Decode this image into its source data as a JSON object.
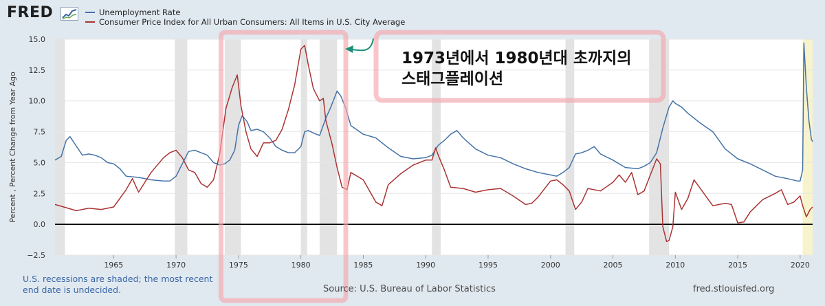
{
  "header": {
    "logo_text": "FRED",
    "logo_icon": "fred-chart-icon"
  },
  "legend": [
    {
      "label": "Unemployment Rate",
      "color": "#4572a7"
    },
    {
      "label": "Consumer Price Index for All Urban Consumers: All Items in U.S. City Average",
      "color": "#aa3333"
    }
  ],
  "annotation": {
    "line1": "1973년에서 1980년대 초까지의",
    "line2": "스태그플레이션"
  },
  "footer": {
    "note_line1": "U.S. recessions are shaded; the most recent",
    "note_line2": "end date is undecided.",
    "source": "Source: U.S. Bureau of Labor Statistics",
    "site": "fred.stlouisfed.org"
  },
  "chart_data": {
    "type": "line",
    "ylabel": "Percent , Percent Change from Year Ago",
    "xlim": [
      1960.3,
      2021.0
    ],
    "ylim": [
      -2.5,
      15.0
    ],
    "yticks": [
      "−2.5",
      "0.0",
      "2.5",
      "5.0",
      "7.5",
      "10.0",
      "12.5",
      "15.0"
    ],
    "ytick_values": [
      -2.5,
      0,
      2.5,
      5,
      7.5,
      10,
      12.5,
      15
    ],
    "xticks": [
      "1965",
      "1970",
      "1975",
      "1980",
      "1985",
      "1990",
      "1995",
      "2000",
      "2005",
      "2010",
      "2015",
      "2020"
    ],
    "xtick_values": [
      1965,
      1970,
      1975,
      1980,
      1985,
      1990,
      1995,
      2000,
      2005,
      2010,
      2015,
      2020
    ],
    "recessions": [
      [
        1960.3,
        1961.1
      ],
      [
        1969.9,
        1970.9
      ],
      [
        1973.9,
        1975.2
      ],
      [
        1980.0,
        1980.5
      ],
      [
        1981.5,
        1982.9
      ],
      [
        1990.5,
        1991.2
      ],
      [
        2001.2,
        2001.9
      ],
      [
        2007.9,
        2009.5
      ]
    ],
    "undecided_recession_start": 2020.2,
    "highlight": {
      "x": [
        1973.6,
        1983.6
      ],
      "label": "stagflation-box"
    },
    "series": [
      {
        "name": "Unemployment Rate",
        "color": "#4572a7",
        "x": [
          1960.3,
          1960.8,
          1961.2,
          1961.5,
          1961.9,
          1962.5,
          1963.0,
          1963.5,
          1964.0,
          1964.5,
          1965.0,
          1965.5,
          1966.0,
          1967.0,
          1968.0,
          1969.0,
          1969.5,
          1970.0,
          1970.5,
          1971.0,
          1971.5,
          1972.0,
          1972.5,
          1973.0,
          1973.5,
          1973.9,
          1974.3,
          1974.7,
          1975.0,
          1975.3,
          1975.7,
          1976.0,
          1976.5,
          1977.0,
          1977.5,
          1978.0,
          1978.5,
          1979.0,
          1979.5,
          1980.0,
          1980.3,
          1980.6,
          1981.0,
          1981.5,
          1982.0,
          1982.4,
          1982.9,
          1983.2,
          1983.6,
          1984.0,
          1985.0,
          1986.0,
          1987.0,
          1988.0,
          1989.0,
          1990.0,
          1990.5,
          1991.0,
          1991.5,
          1992.0,
          1992.5,
          1993.0,
          1994.0,
          1995.0,
          1996.0,
          1997.0,
          1998.0,
          1999.0,
          2000.0,
          2000.5,
          2001.0,
          2001.5,
          2002.0,
          2002.5,
          2003.0,
          2003.5,
          2004.0,
          2005.0,
          2006.0,
          2007.0,
          2007.5,
          2008.0,
          2008.5,
          2009.0,
          2009.5,
          2009.8,
          2010.0,
          2010.5,
          2011.0,
          2012.0,
          2013.0,
          2014.0,
          2015.0,
          2016.0,
          2017.0,
          2018.0,
          2019.0,
          2019.8,
          2020.0,
          2020.2,
          2020.3,
          2020.5,
          2020.7,
          2020.9,
          2021.0
        ],
        "values": [
          5.2,
          5.5,
          6.8,
          7.1,
          6.5,
          5.6,
          5.7,
          5.6,
          5.4,
          5.0,
          4.9,
          4.5,
          3.9,
          3.8,
          3.6,
          3.5,
          3.5,
          3.9,
          4.9,
          5.9,
          6.0,
          5.8,
          5.6,
          5.0,
          4.8,
          4.9,
          5.2,
          6.0,
          8.0,
          8.8,
          8.3,
          7.6,
          7.7,
          7.5,
          7.0,
          6.3,
          6.0,
          5.8,
          5.8,
          6.3,
          7.5,
          7.6,
          7.4,
          7.2,
          8.6,
          9.5,
          10.8,
          10.4,
          9.4,
          8.0,
          7.3,
          7.0,
          6.2,
          5.5,
          5.3,
          5.4,
          5.6,
          6.4,
          6.8,
          7.3,
          7.6,
          7.0,
          6.1,
          5.6,
          5.4,
          4.9,
          4.5,
          4.2,
          4.0,
          3.9,
          4.2,
          4.6,
          5.7,
          5.8,
          6.0,
          6.3,
          5.7,
          5.2,
          4.6,
          4.5,
          4.7,
          5.0,
          5.8,
          7.8,
          9.5,
          10.0,
          9.8,
          9.5,
          9.0,
          8.2,
          7.5,
          6.1,
          5.3,
          4.9,
          4.4,
          3.9,
          3.7,
          3.5,
          3.5,
          4.4,
          14.7,
          11.1,
          8.4,
          6.9,
          6.7
        ]
      },
      {
        "name": "Consumer Price Index for All Urban Consumers: All Items in U.S. City Average",
        "color": "#aa3333",
        "x": [
          1960.3,
          1961.0,
          1962.0,
          1963.0,
          1964.0,
          1965.0,
          1966.0,
          1966.5,
          1967.0,
          1968.0,
          1969.0,
          1969.5,
          1970.0,
          1970.5,
          1971.0,
          1971.5,
          1972.0,
          1972.5,
          1973.0,
          1973.5,
          1974.0,
          1974.5,
          1974.9,
          1975.2,
          1975.6,
          1976.0,
          1976.5,
          1977.0,
          1977.5,
          1978.0,
          1978.5,
          1979.0,
          1979.5,
          1980.0,
          1980.3,
          1980.6,
          1981.0,
          1981.5,
          1981.8,
          1982.0,
          1982.5,
          1982.9,
          1983.3,
          1983.7,
          1984.0,
          1985.0,
          1986.0,
          1986.5,
          1987.0,
          1988.0,
          1989.0,
          1989.5,
          1990.0,
          1990.5,
          1990.8,
          1991.0,
          1991.5,
          1992.0,
          1993.0,
          1994.0,
          1995.0,
          1996.0,
          1997.0,
          1998.0,
          1998.5,
          1999.0,
          2000.0,
          2000.5,
          2001.0,
          2001.5,
          2002.0,
          2002.5,
          2003.0,
          2004.0,
          2005.0,
          2005.5,
          2006.0,
          2006.5,
          2007.0,
          2007.5,
          2008.0,
          2008.5,
          2008.8,
          2009.0,
          2009.3,
          2009.5,
          2009.8,
          2010.0,
          2010.5,
          2011.0,
          2011.5,
          2012.0,
          2013.0,
          2014.0,
          2014.5,
          2015.0,
          2015.5,
          2016.0,
          2017.0,
          2018.0,
          2018.5,
          2019.0,
          2019.5,
          2020.0,
          2020.2,
          2020.5,
          2020.8,
          2021.0
        ],
        "values": [
          1.6,
          1.4,
          1.1,
          1.3,
          1.2,
          1.4,
          2.8,
          3.7,
          2.6,
          4.2,
          5.4,
          5.8,
          6.0,
          5.4,
          4.4,
          4.2,
          3.3,
          3.0,
          3.6,
          5.7,
          9.4,
          11.1,
          12.1,
          9.6,
          7.5,
          6.1,
          5.5,
          6.6,
          6.6,
          6.8,
          7.7,
          9.3,
          11.3,
          14.2,
          14.5,
          12.9,
          11.0,
          10.0,
          10.2,
          8.4,
          6.5,
          4.6,
          3.0,
          2.8,
          4.2,
          3.6,
          1.8,
          1.5,
          3.2,
          4.1,
          4.8,
          5.0,
          5.2,
          5.2,
          6.2,
          5.6,
          4.4,
          3.0,
          2.9,
          2.6,
          2.8,
          2.9,
          2.3,
          1.6,
          1.7,
          2.2,
          3.5,
          3.6,
          3.2,
          2.7,
          1.2,
          1.8,
          2.9,
          2.7,
          3.4,
          4.0,
          3.4,
          4.2,
          2.4,
          2.7,
          4.0,
          5.3,
          4.9,
          -0.2,
          -1.4,
          -1.3,
          -0.2,
          2.6,
          1.2,
          2.1,
          3.6,
          2.9,
          1.5,
          1.7,
          1.6,
          0.1,
          0.2,
          1.0,
          2.0,
          2.5,
          2.8,
          1.6,
          1.8,
          2.3,
          1.5,
          0.6,
          1.2,
          1.4
        ]
      }
    ]
  }
}
